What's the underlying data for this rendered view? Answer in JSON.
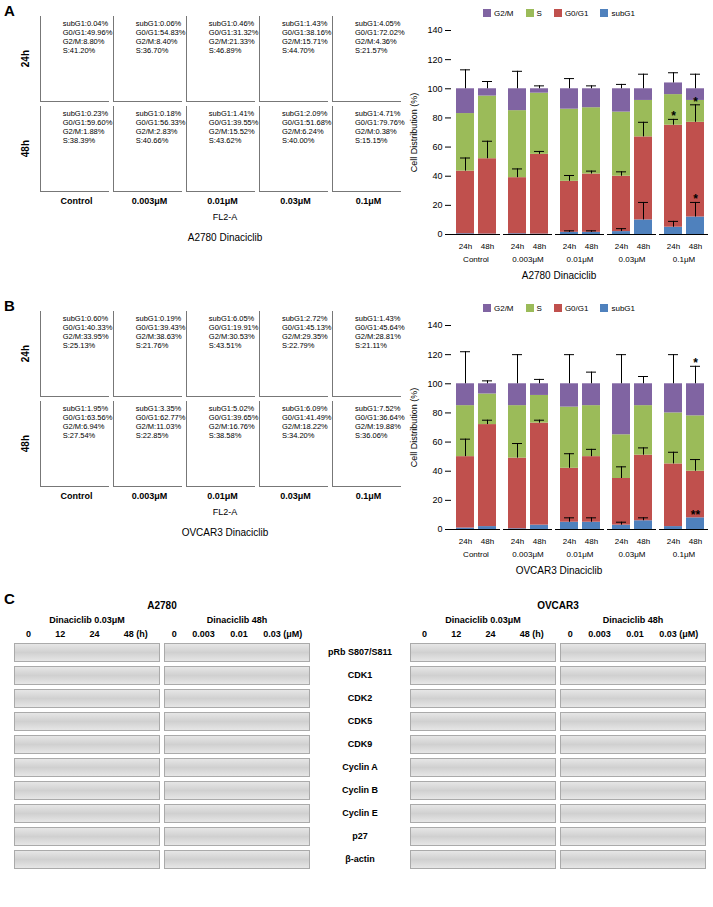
{
  "chart_data": [
    {
      "type": "bar",
      "stacked": true,
      "title": "A2780 Dinaciclib",
      "y_label": "Cell Distribution (%)",
      "categories": [
        "24h",
        "48h",
        "24h",
        "48h",
        "24h",
        "48h",
        "24h",
        "48h",
        "24h",
        "48h"
      ],
      "category_groups": [
        "Control",
        "Control",
        "0.003μM",
        "0.003μM",
        "0.01μM",
        "0.01μM",
        "0.03μM",
        "0.03μM",
        "0.1μM",
        "0.1μM"
      ],
      "ylim": [
        0,
        140
      ],
      "yticks": [
        0,
        20,
        40,
        60,
        80,
        100,
        120,
        140
      ],
      "grid": false,
      "legend": "top",
      "series": [
        {
          "name": "subG1",
          "color": "#4f81bd",
          "values": [
            0.5,
            0.3,
            0.5,
            0.3,
            1.5,
            1.5,
            2,
            10,
            5,
            12
          ],
          "errors": [
            null,
            null,
            null,
            null,
            1,
            1,
            2,
            12,
            4,
            10
          ]
        },
        {
          "name": "G0/G1",
          "color": "#c0504d",
          "values": [
            43,
            51.7,
            38.5,
            54.7,
            35,
            40,
            38,
            57,
            70,
            65
          ],
          "errors": [
            9,
            12,
            6,
            2,
            4,
            2,
            3,
            10,
            4,
            12
          ]
        },
        {
          "name": "S",
          "color": "#9bbb59",
          "values": [
            39.5,
            43,
            46,
            42,
            49.5,
            45.5,
            44,
            25,
            21,
            15
          ],
          "errors": [
            null,
            null,
            null,
            null,
            null,
            null,
            null,
            null,
            null,
            null
          ]
        },
        {
          "name": "G2/M",
          "color": "#8064a2",
          "values": [
            17,
            5,
            15,
            3,
            14,
            13,
            16,
            8,
            8,
            8
          ],
          "errors": [
            13,
            5,
            12,
            2,
            7,
            2,
            3,
            10,
            7,
            10
          ]
        }
      ],
      "annotations": [
        {
          "x": 8,
          "series": "G0/G1",
          "text": "*"
        },
        {
          "x": 9,
          "series": "G0/G1",
          "text": "*"
        },
        {
          "x": 9,
          "series": "subG1",
          "text": "*"
        }
      ]
    },
    {
      "type": "bar",
      "stacked": true,
      "title": "OVCAR3 Dinaciclib",
      "y_label": "Cell Distribution (%)",
      "categories": [
        "24h",
        "48h",
        "24h",
        "48h",
        "24h",
        "48h",
        "24h",
        "48h",
        "24h",
        "48h"
      ],
      "category_groups": [
        "Control",
        "Control",
        "0.003μM",
        "0.003μM",
        "0.01μM",
        "0.01μM",
        "0.03μM",
        "0.03μM",
        "0.1μM",
        "0.1μM"
      ],
      "ylim": [
        0,
        140
      ],
      "yticks": [
        0,
        20,
        40,
        60,
        80,
        100,
        120,
        140
      ],
      "grid": false,
      "legend": "top",
      "series": [
        {
          "name": "subG1",
          "color": "#4f81bd",
          "values": [
            1,
            2,
            0.5,
            3,
            5,
            5,
            3,
            6,
            2,
            8
          ],
          "errors": [
            null,
            null,
            null,
            null,
            3,
            3,
            2,
            2,
            null,
            null
          ]
        },
        {
          "name": "G0/G1",
          "color": "#c0504d",
          "values": [
            49,
            70,
            48.5,
            70,
            37,
            45,
            32,
            45,
            43,
            32
          ],
          "errors": [
            12,
            3,
            10,
            2,
            10,
            5,
            8,
            5,
            8,
            8
          ]
        },
        {
          "name": "S",
          "color": "#9bbb59",
          "values": [
            35,
            21,
            36,
            19,
            42,
            35,
            30,
            34,
            35,
            38
          ],
          "errors": [
            null,
            null,
            null,
            null,
            null,
            null,
            null,
            null,
            null,
            null
          ]
        },
        {
          "name": "G2/M",
          "color": "#8064a2",
          "values": [
            15,
            7,
            15,
            8,
            16,
            15,
            35,
            15,
            20,
            22
          ],
          "errors": [
            22,
            2,
            20,
            3,
            20,
            8,
            20,
            5,
            20,
            12
          ]
        }
      ],
      "annotations": [
        {
          "x": 9,
          "series": "G2/M",
          "text": "*"
        },
        {
          "x": 9,
          "series": "subG1",
          "text": "**"
        }
      ]
    }
  ],
  "flow_panels": [
    {
      "letter": "A",
      "caption": "A2780 Dinaciclib",
      "x_label": "FL2-A",
      "columns": [
        "Control",
        "0.003μM",
        "0.01μM",
        "0.03μM",
        "0.1μM"
      ],
      "rows": [
        {
          "label": "24h",
          "cells": [
            [
              "subG1:0.04%",
              "G0/G1:49.96%",
              "G2/M:8.80%",
              "S:41.20%"
            ],
            [
              "subG1:0.06%",
              "G0/G1:54.83%",
              "G2/M:8.40%",
              "S:36.70%"
            ],
            [
              "subG1:0.46%",
              "G0/G1:31.32%",
              "G2/M:21.33%",
              "S:46.89%"
            ],
            [
              "subG1:1.43%",
              "G0/G1:38.16%",
              "G2/M:15.71%",
              "S:44.70%"
            ],
            [
              "subG1:4.05%",
              "G0/G1:72.02%",
              "G2/M:4.36%",
              "S:21.57%"
            ]
          ]
        },
        {
          "label": "48h",
          "cells": [
            [
              "subG1:0.23%",
              "G0/G1:59.60%",
              "G2/M:1.88%",
              "S:38.39%"
            ],
            [
              "subG1:0.18%",
              "G0/G1:56.33%",
              "G2/M:2.83%",
              "S:40.66%"
            ],
            [
              "subG1:1.41%",
              "G0/G1:39.55%",
              "G2/M:15.52%",
              "S:43.62%"
            ],
            [
              "subG1:2.09%",
              "G0/G1:51.68%",
              "G2/M:6.24%",
              "S:40.00%"
            ],
            [
              "subG1:4.71%",
              "G0/G1:79.76%",
              "G2/M:0.38%",
              "S:15.15%"
            ]
          ]
        }
      ]
    },
    {
      "letter": "B",
      "caption": "OVCAR3 Dinaciclib",
      "x_label": "FL2-A",
      "columns": [
        "Control",
        "0.003μM",
        "0.01μM",
        "0.03μM",
        "0.1μM"
      ],
      "rows": [
        {
          "label": "24h",
          "cells": [
            [
              "subG1:0.60%",
              "G0/G1:40.33%",
              "G2/M:33.95%",
              "S:25.13%"
            ],
            [
              "subG1:0.19%",
              "G0/G1:39.43%",
              "G2/M:38.63%",
              "S:21.76%"
            ],
            [
              "subG1:6.05%",
              "G0/G1:19.91%",
              "G2/M:30.53%",
              "S:43.51%"
            ],
            [
              "subG1:2.72%",
              "G0/G1:45.13%",
              "G2/M:29.35%",
              "S:22.79%"
            ],
            [
              "subG1:1.43%",
              "G0/G1:45.64%",
              "G2/M:28.81%",
              "S:21.11%"
            ]
          ]
        },
        {
          "label": "48h",
          "cells": [
            [
              "subG1:1.95%",
              "G0/G1:63.56%",
              "G2/M:6.94%",
              "S:27.54%"
            ],
            [
              "subG1:3.35%",
              "G0/G1:62.77%",
              "G2/M:11.03%",
              "S:22.85%"
            ],
            [
              "subG1:5.02%",
              "G0/G1:39.65%",
              "G2/M:16.76%",
              "S:38.58%"
            ],
            [
              "subG1:6.09%",
              "G0/G1:41.49%",
              "G2/M:18.22%",
              "S:34.20%"
            ],
            [
              "subG1:7.52%",
              "G0/G1:36.64%",
              "G2/M:19.88%",
              "S:36.06%"
            ]
          ]
        }
      ]
    }
  ],
  "blots": {
    "letter": "C",
    "rows": [
      "pRb S807/S811",
      "CDK1",
      "CDK2",
      "CDK5",
      "CDK9",
      "Cyclin A",
      "Cyclin B",
      "Cyclin E",
      "p27",
      "β-actin"
    ],
    "groups": [
      {
        "cell_line": "A2780",
        "panels": [
          {
            "title": "Dinaciclib 0.03μM",
            "lanes": [
              "0",
              "12",
              "24",
              "48 (h)"
            ]
          },
          {
            "title": "Dinaciclib 48h",
            "lanes": [
              "0",
              "0.003",
              "0.01",
              "0.03 (μM)"
            ]
          }
        ]
      },
      {
        "cell_line": "OVCAR3",
        "panels": [
          {
            "title": "Dinaciclib 0.03μM",
            "lanes": [
              "0",
              "12",
              "24",
              "48 (h)"
            ]
          },
          {
            "title": "Dinaciclib 48h",
            "lanes": [
              "0",
              "0.003",
              "0.01",
              "0.03 (μM)"
            ]
          }
        ]
      }
    ]
  }
}
